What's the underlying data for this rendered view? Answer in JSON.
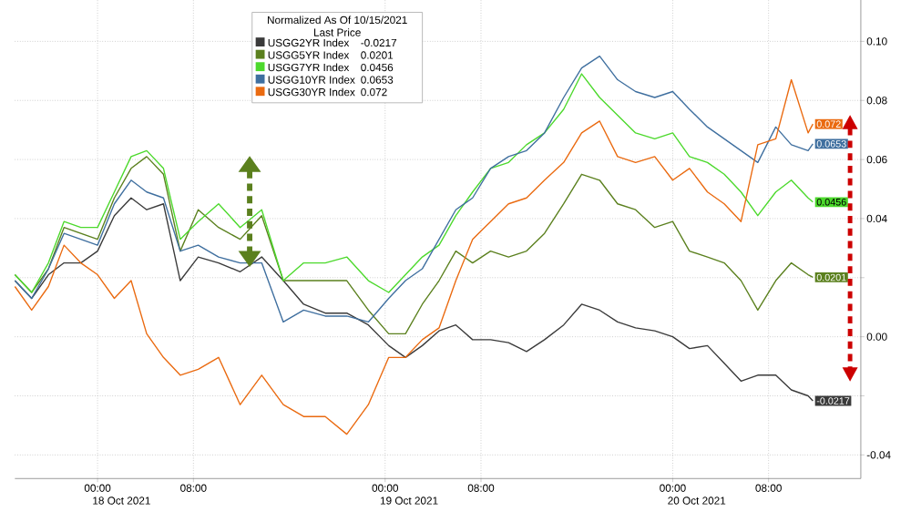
{
  "chart_data": {
    "type": "line",
    "legend_title": "Normalized As Of 10/15/2021 Last Price",
    "legend": "top",
    "grid": true,
    "marker": "none",
    "line_style": "solid",
    "x": [
      "2021-10-17T17:06",
      "2021-10-17T18:30",
      "2021-10-17T19:54",
      "2021-10-17T21:12",
      "2021-10-17T22:36",
      "2021-10-18T00:00",
      "2021-10-18T01:24",
      "2021-10-18T02:48",
      "2021-10-18T04:06",
      "2021-10-18T05:30",
      "2021-10-18T06:54",
      "2021-10-18T08:24",
      "2021-10-18T10:06",
      "2021-10-18T11:54",
      "2021-10-18T13:42",
      "2021-10-18T15:30",
      "2021-10-18T17:12",
      "2021-10-18T19:00",
      "2021-10-18T20:48",
      "2021-10-18T22:36",
      "2021-10-19T00:18",
      "2021-10-19T01:42",
      "2021-10-19T03:06",
      "2021-10-19T04:30",
      "2021-10-19T05:54",
      "2021-10-19T07:18",
      "2021-10-19T08:48",
      "2021-10-19T10:18",
      "2021-10-19T11:48",
      "2021-10-19T13:18",
      "2021-10-19T14:54",
      "2021-10-19T16:24",
      "2021-10-19T17:54",
      "2021-10-19T19:24",
      "2021-10-19T20:54",
      "2021-10-19T22:30",
      "2021-10-20T00:00",
      "2021-10-20T01:24",
      "2021-10-20T02:54",
      "2021-10-20T04:18",
      "2021-10-20T05:42",
      "2021-10-20T07:06",
      "2021-10-20T08:36",
      "2021-10-20T09:54",
      "2021-10-20T11:18",
      "2021-10-20T11:42"
    ],
    "xlim": [
      "2021-10-17T17:06",
      "2021-10-20T15:42"
    ],
    "xticks": [
      {
        "value": "2021-10-18T00:00",
        "label": "00:00"
      },
      {
        "value": "2021-10-18T08:00",
        "label": "08:00"
      },
      {
        "value": "2021-10-19T00:00",
        "label": "00:00"
      },
      {
        "value": "2021-10-19T08:00",
        "label": "08:00"
      },
      {
        "value": "2021-10-20T00:00",
        "label": "00:00"
      },
      {
        "value": "2021-10-20T08:00",
        "label": "08:00"
      }
    ],
    "ylim": [
      -0.048,
      0.114
    ],
    "yticks": [
      {
        "value": -0.04,
        "label": "-0.04"
      },
      {
        "value": -0.02,
        "label": null
      },
      {
        "value": 0,
        "label": "0.00"
      },
      {
        "value": 0.02,
        "label": null
      },
      {
        "value": 0.04,
        "label": "0.04"
      },
      {
        "value": 0.06,
        "label": "0.06"
      },
      {
        "value": 0.08,
        "label": "0.08"
      },
      {
        "value": 0.1,
        "label": "0.10"
      }
    ],
    "annotations": [
      "18 Oct 2021",
      "19 Oct 2021",
      "20 Oct 2021"
    ],
    "series": [
      {
        "name": "USGG2YR Index",
        "color": "#3a3a3a",
        "values": [
          0.019,
          0.013,
          0.021,
          0.025,
          0.025,
          0.029,
          0.041,
          0.047,
          0.043,
          0.045,
          0.019,
          0.027,
          0.025,
          0.022,
          0.027,
          0.019,
          0.011,
          0.008,
          0.008,
          0.004,
          -0.003,
          -0.007,
          -0.003,
          0.002,
          0.004,
          -0.001,
          -0.001,
          -0.002,
          -0.005,
          -0.001,
          0.004,
          0.011,
          0.009,
          0.005,
          0.003,
          0.002,
          0.0,
          -0.004,
          -0.003,
          -0.009,
          -0.015,
          -0.013,
          -0.013,
          -0.018,
          -0.02,
          -0.0217
        ],
        "value_labels": [
          null,
          null,
          null,
          null,
          null,
          null,
          null,
          null,
          null,
          null,
          null,
          null,
          null,
          null,
          null,
          null,
          null,
          null,
          null,
          null,
          null,
          null,
          null,
          null,
          null,
          null,
          null,
          null,
          null,
          null,
          null,
          null,
          null,
          null,
          null,
          null,
          null,
          null,
          null,
          null,
          null,
          null,
          null,
          null,
          null,
          "-0.0217"
        ]
      },
      {
        "name": "USGG5YR Index",
        "color": "#5b801e",
        "values": [
          0.021,
          0.015,
          0.023,
          0.037,
          0.035,
          0.033,
          0.047,
          0.057,
          0.061,
          0.055,
          0.029,
          0.043,
          0.037,
          0.033,
          0.041,
          0.019,
          0.019,
          0.019,
          0.019,
          0.009,
          0.001,
          0.001,
          0.011,
          0.019,
          0.029,
          0.025,
          0.029,
          0.027,
          0.029,
          0.035,
          0.045,
          0.055,
          0.053,
          0.045,
          0.043,
          0.037,
          0.039,
          0.029,
          0.027,
          0.025,
          0.019,
          0.009,
          0.019,
          0.025,
          0.021,
          0.0201
        ],
        "value_labels": [
          null,
          null,
          null,
          null,
          null,
          null,
          null,
          null,
          null,
          null,
          null,
          null,
          null,
          null,
          null,
          null,
          null,
          null,
          null,
          null,
          null,
          null,
          null,
          null,
          null,
          null,
          null,
          null,
          null,
          null,
          null,
          null,
          null,
          null,
          null,
          null,
          null,
          null,
          null,
          null,
          null,
          null,
          null,
          null,
          null,
          "0.0201"
        ]
      },
      {
        "name": "USGG7YR Index",
        "color": "#4cd92c",
        "values": [
          0.021,
          0.015,
          0.025,
          0.039,
          0.037,
          0.037,
          0.049,
          0.061,
          0.063,
          0.057,
          0.033,
          0.039,
          0.045,
          0.037,
          0.043,
          0.019,
          0.025,
          0.025,
          0.027,
          0.019,
          0.015,
          0.021,
          0.027,
          0.031,
          0.041,
          0.049,
          0.057,
          0.059,
          0.065,
          0.069,
          0.077,
          0.089,
          0.081,
          0.075,
          0.069,
          0.067,
          0.069,
          0.061,
          0.059,
          0.055,
          0.049,
          0.041,
          0.049,
          0.053,
          0.047,
          0.0456
        ],
        "value_labels": [
          null,
          null,
          null,
          null,
          null,
          null,
          null,
          null,
          null,
          null,
          null,
          null,
          null,
          null,
          null,
          null,
          null,
          null,
          null,
          null,
          null,
          null,
          null,
          null,
          null,
          null,
          null,
          null,
          null,
          null,
          null,
          null,
          null,
          null,
          null,
          null,
          null,
          null,
          null,
          null,
          null,
          null,
          null,
          null,
          null,
          "0.0456"
        ]
      },
      {
        "name": "USGG10YR Index",
        "color": "#3f6f9f",
        "values": [
          0.019,
          0.013,
          0.023,
          0.035,
          0.033,
          0.031,
          0.045,
          0.053,
          0.049,
          0.047,
          0.029,
          0.031,
          0.027,
          0.025,
          0.025,
          0.005,
          0.009,
          0.007,
          0.007,
          0.005,
          0.013,
          0.019,
          0.023,
          0.033,
          0.043,
          0.047,
          0.057,
          0.061,
          0.063,
          0.069,
          0.081,
          0.091,
          0.095,
          0.087,
          0.083,
          0.081,
          0.083,
          0.077,
          0.071,
          0.067,
          0.063,
          0.059,
          0.071,
          0.065,
          0.063,
          0.0653
        ],
        "value_labels": [
          null,
          null,
          null,
          null,
          null,
          null,
          null,
          null,
          null,
          null,
          null,
          null,
          null,
          null,
          null,
          null,
          null,
          null,
          null,
          null,
          null,
          null,
          null,
          null,
          null,
          null,
          null,
          null,
          null,
          null,
          null,
          null,
          null,
          null,
          null,
          null,
          null,
          null,
          null,
          null,
          null,
          null,
          null,
          null,
          null,
          "0.0653"
        ]
      },
      {
        "name": "USGG30YR Index",
        "color": "#ea6a10",
        "values": [
          0.017,
          0.009,
          0.017,
          0.031,
          0.025,
          0.021,
          0.013,
          0.019,
          0.001,
          -0.007,
          -0.013,
          -0.011,
          -0.007,
          -0.023,
          -0.013,
          -0.023,
          -0.027,
          -0.027,
          -0.033,
          -0.023,
          -0.007,
          -0.007,
          -0.001,
          0.003,
          0.019,
          0.033,
          0.039,
          0.045,
          0.047,
          0.053,
          0.059,
          0.069,
          0.073,
          0.061,
          0.059,
          0.061,
          0.053,
          0.057,
          0.049,
          0.045,
          0.039,
          0.065,
          0.067,
          0.087,
          0.069,
          0.072
        ],
        "value_labels": [
          null,
          null,
          null,
          null,
          null,
          null,
          null,
          null,
          null,
          null,
          null,
          null,
          null,
          null,
          null,
          null,
          null,
          null,
          null,
          null,
          null,
          null,
          null,
          null,
          null,
          null,
          null,
          null,
          null,
          null,
          null,
          null,
          null,
          null,
          null,
          null,
          null,
          null,
          null,
          null,
          null,
          null,
          null,
          null,
          null,
          "0.072"
        ]
      }
    ]
  }
}
